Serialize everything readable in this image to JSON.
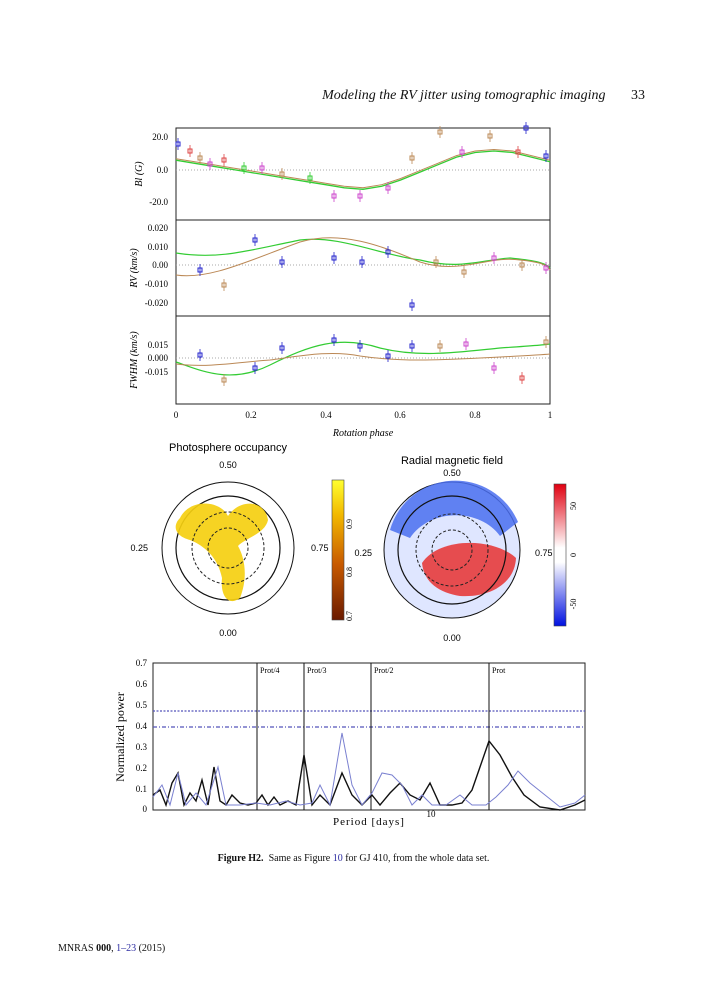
{
  "header": {
    "running_title": "Modeling the RV jitter using tomographic imaging",
    "page_number": "33"
  },
  "figure": {
    "panels": {
      "bl": {
        "ylabel": "Bl (G)",
        "ticks": [
          "20.0",
          "0.0",
          "-20.0"
        ]
      },
      "rv": {
        "ylabel": "RV (km/s)",
        "ticks": [
          "0.020",
          "0.010",
          "0.00",
          "-0.010",
          "-0.020"
        ]
      },
      "fwhm": {
        "ylabel": "FWHM (km/s)",
        "ticks": [
          "0.015",
          "0.000",
          "-0.015"
        ]
      },
      "xticks": [
        "0",
        "0.2",
        "0.4",
        "0.6",
        "0.8",
        "1"
      ],
      "xlabel": "Rotation phase"
    },
    "maps": {
      "occupancy": {
        "title": "Photosphere occupancy",
        "top": "0.50",
        "left": "0.25",
        "right": "0.75",
        "bottom": "0.00",
        "colorbar_ticks": [
          "0.9",
          "0.8",
          "0.7"
        ]
      },
      "magnetic": {
        "title": "Radial magnetic field",
        "top": "0.50",
        "left": "0.25",
        "right": "0.75",
        "bottom": "0.00",
        "colorbar_ticks": [
          "50",
          "0",
          "-50"
        ]
      }
    },
    "periodogram": {
      "ylabel": "Normalized power",
      "xlabel": "Period [days]",
      "xtick": "10",
      "yticks": [
        "0.7",
        "0.6",
        "0.5",
        "0.4",
        "0.3",
        "0.2",
        "0.1",
        "0"
      ],
      "markers": [
        "Prot/4",
        "Prot/3",
        "Prot/2",
        "Prot"
      ]
    }
  },
  "chart_data": {
    "type": "line",
    "x": [
      0.0,
      0.05,
      0.1,
      0.15,
      0.2,
      0.25,
      0.3,
      0.35,
      0.4,
      0.45,
      0.5,
      0.55,
      0.6,
      0.65,
      0.7,
      0.75,
      0.8,
      0.85,
      0.9,
      0.95,
      1.0
    ],
    "series": [
      {
        "values": [
          9,
          7,
          5,
          3,
          1,
          -1,
          -3,
          -5,
          -7,
          -9,
          -10,
          -8,
          -4,
          1,
          6,
          11,
          14,
          15,
          14,
          11,
          8
        ]
      },
      {
        "values": [
          10,
          8,
          6,
          4,
          2,
          0,
          -2,
          -4,
          -6,
          -8,
          -9,
          -7,
          -3,
          2,
          7,
          12,
          15,
          16,
          15,
          12,
          9
        ]
      }
    ],
    "xlabel": "Rotation phase",
    "ylabel": "Bl (G)",
    "xlim": [
      0,
      1
    ],
    "ylim": [
      -30,
      30
    ]
  },
  "caption": {
    "label": "Figure H2.",
    "text_before": "Same as Figure ",
    "ref": "10",
    "text_after": " for GJ 410, from the whole data set."
  },
  "footer": {
    "journal": "MNRAS ",
    "volume": "000",
    "sep": ", ",
    "pages": "1–23",
    "year": " (2015)"
  }
}
